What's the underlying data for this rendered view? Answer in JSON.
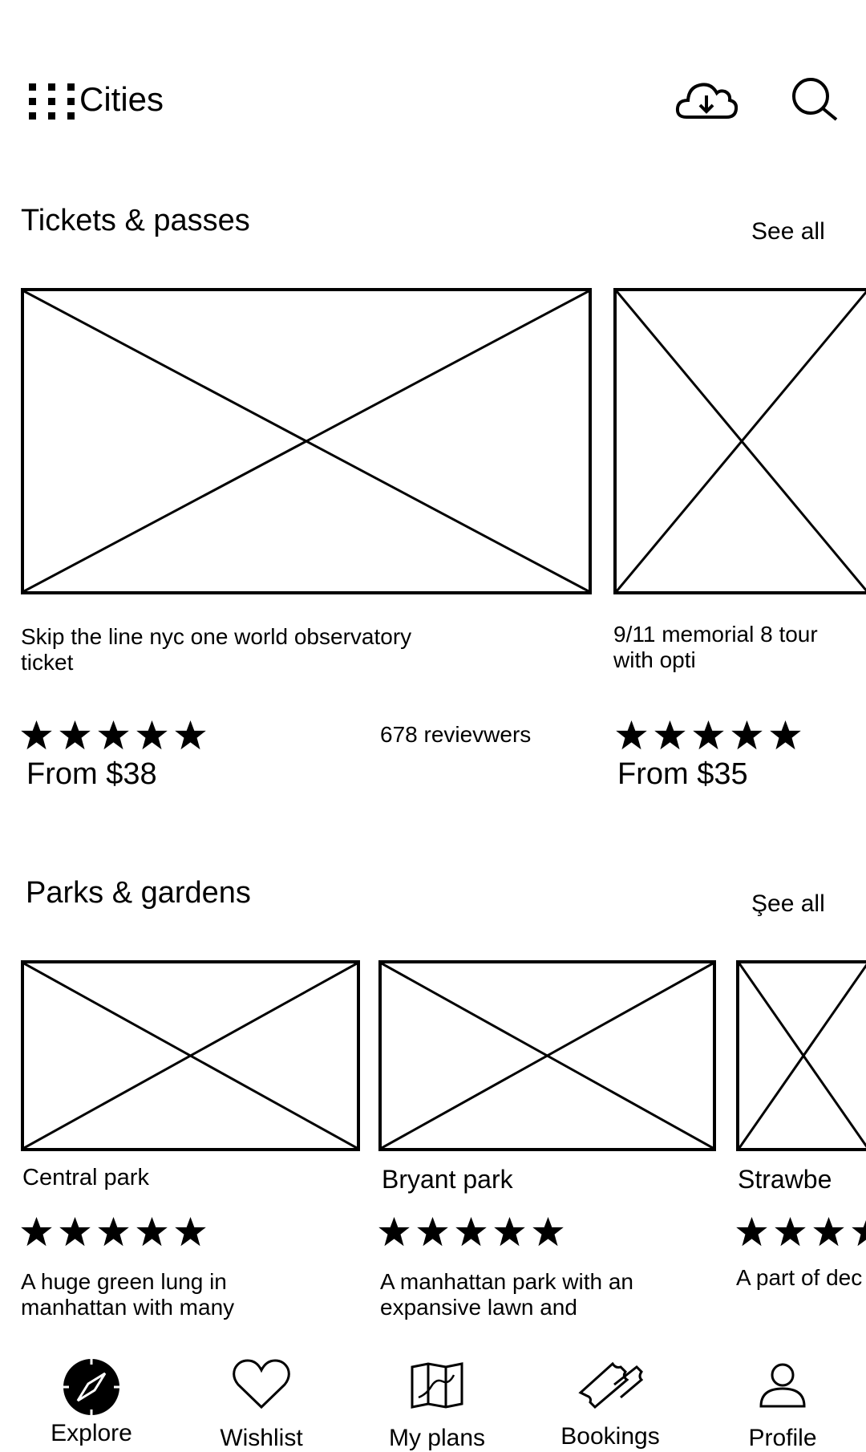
{
  "header": {
    "title": "Cities",
    "menu_icon": "grid-menu-icon",
    "download_icon": "cloud-download-icon",
    "search_icon": "search-icon"
  },
  "tickets": {
    "title": "Tickets & passes",
    "see_all": "See all",
    "cards": [
      {
        "title_line1": "Skip the line nyc one world observatory",
        "title_line2": "ticket",
        "rating": 5,
        "reviews": "678 revievwers",
        "price": "From $38"
      },
      {
        "title_line1": "9/11 memorial 8 tour",
        "title_line2": "with opti",
        "rating": 5,
        "price": "From $35"
      }
    ]
  },
  "parks": {
    "title": "Parks & gardens",
    "see_all": "Şee all",
    "cards": [
      {
        "title": "Central park",
        "rating": 5,
        "desc_line1": "A huge green lung in",
        "desc_line2": "manhattan with many"
      },
      {
        "title": "Bryant park",
        "rating": 5,
        "desc_line1": "A manhattan park with an",
        "desc_line2": "expansive lawn and"
      },
      {
        "title": "Strawbe",
        "rating": 5,
        "desc_line1": "A part of dec"
      }
    ]
  },
  "bottom_nav": {
    "items": [
      {
        "label": "Explore",
        "icon": "compass-icon"
      },
      {
        "label": "Wishlist",
        "icon": "heart-icon"
      },
      {
        "label": "My plans",
        "icon": "map-icon"
      },
      {
        "label": "Bookings",
        "icon": "ticket-icon"
      },
      {
        "label": "Profile",
        "icon": "person-icon"
      }
    ]
  }
}
